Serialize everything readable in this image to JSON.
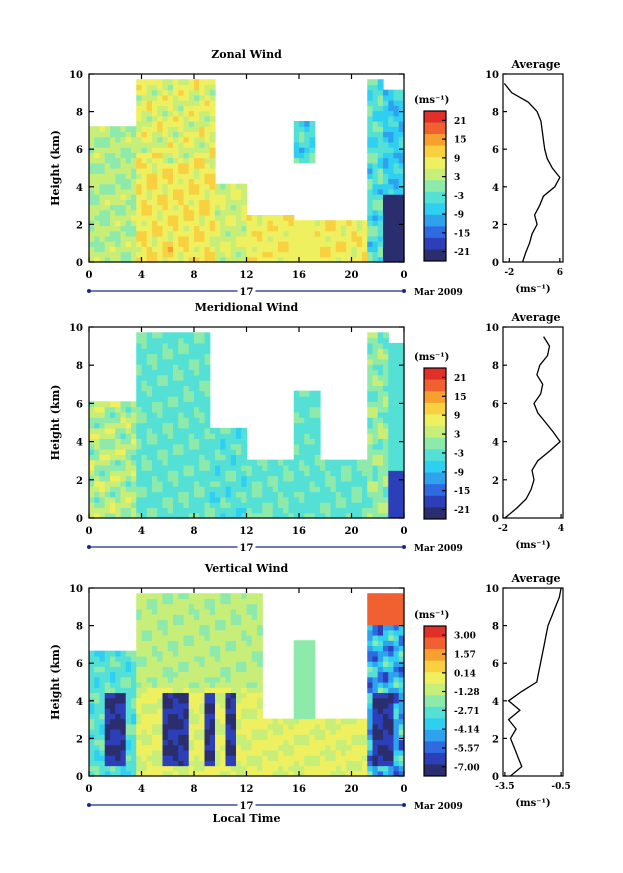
{
  "chart_data": [
    {
      "type": "heatmap",
      "title": "Zonal Wind",
      "ylabel": "Height (km)",
      "xlabel": "",
      "ylim": [
        0,
        10
      ],
      "xlim": [
        0,
        24
      ],
      "x_ticks": [
        "0",
        "4",
        "8",
        "12",
        "16",
        "20",
        "0"
      ],
      "y_ticks": [
        "0",
        "2",
        "4",
        "6",
        "8",
        "10"
      ],
      "day_label": "17",
      "date_label": "Mar 2009",
      "colorbar": {
        "unit": "(ms⁻¹)",
        "ticks": [
          "21",
          "15",
          "9",
          "3",
          "-3",
          "-9",
          "-15",
          "-21"
        ],
        "min": -24,
        "max": 24
      },
      "average": {
        "title": "Average",
        "xlabel": "(ms⁻¹)",
        "x_ticks": [
          "-2",
          "6"
        ],
        "xlim": [
          -3,
          6.5
        ],
        "height": [
          0,
          0.5,
          1,
          1.5,
          2,
          2.5,
          3,
          3.5,
          4,
          4.5,
          5,
          5.5,
          6,
          6.5,
          7,
          7.5,
          8,
          8.5,
          9,
          9.5
        ],
        "values": [
          0.1,
          0.6,
          1.2,
          1.6,
          2.4,
          2.0,
          2.8,
          3.4,
          5.2,
          6.0,
          4.8,
          4.0,
          3.6,
          3.4,
          3.2,
          3.0,
          2.4,
          1.0,
          -1.6,
          -2.8
        ]
      }
    },
    {
      "type": "heatmap",
      "title": "Meridional Wind",
      "ylabel": "Height (km)",
      "xlabel": "",
      "ylim": [
        0,
        10
      ],
      "xlim": [
        0,
        24
      ],
      "x_ticks": [
        "0",
        "4",
        "8",
        "12",
        "16",
        "20",
        "0"
      ],
      "y_ticks": [
        "0",
        "2",
        "4",
        "6",
        "8",
        "10"
      ],
      "day_label": "17",
      "date_label": "Mar 2009",
      "colorbar": {
        "unit": "(ms⁻¹)",
        "ticks": [
          "21",
          "15",
          "9",
          "3",
          "-3",
          "-9",
          "-15",
          "-21"
        ],
        "min": -24,
        "max": 24
      },
      "average": {
        "title": "Average",
        "xlabel": "(ms⁻¹)",
        "x_ticks": [
          "-2",
          "4"
        ],
        "xlim": [
          -2,
          4.2
        ],
        "height": [
          0,
          0.5,
          1,
          1.5,
          2,
          2.5,
          3,
          3.5,
          4,
          4.5,
          5,
          5.5,
          6,
          6.5,
          7,
          7.5,
          8,
          8.5,
          9,
          9.5
        ],
        "values": [
          -1.8,
          -0.6,
          0.4,
          0.9,
          1.2,
          1.0,
          1.6,
          2.8,
          3.9,
          3.2,
          2.4,
          1.6,
          1.2,
          1.9,
          2.1,
          1.5,
          1.8,
          2.6,
          2.8,
          2.2
        ]
      }
    },
    {
      "type": "heatmap",
      "title": "Vertical Wind",
      "ylabel": "Height (km)",
      "xlabel": "Local Time",
      "ylim": [
        0,
        10
      ],
      "xlim": [
        0,
        24
      ],
      "x_ticks": [
        "0",
        "4",
        "8",
        "12",
        "16",
        "20",
        "0"
      ],
      "y_ticks": [
        "0",
        "2",
        "4",
        "6",
        "8",
        "10"
      ],
      "day_label": "17",
      "date_label": "Mar 2009",
      "colorbar": {
        "unit": "(ms⁻¹)",
        "ticks": [
          "3.00",
          "1.57",
          "0.14",
          "-1.28",
          "-2.71",
          "-4.14",
          "-5.57",
          "-7.00"
        ],
        "min": -7.7,
        "max": 3.7
      },
      "average": {
        "title": "Average",
        "xlabel": "(ms⁻¹)",
        "x_ticks": [
          "-3.5",
          "-0.5"
        ],
        "xlim": [
          -3.6,
          -0.4
        ],
        "height": [
          0,
          0.5,
          1,
          1.5,
          2,
          2.5,
          3,
          3.5,
          4,
          4.5,
          5,
          5.5,
          6,
          6.5,
          7,
          7.5,
          8,
          8.5,
          9,
          9.5,
          10
        ],
        "values": [
          -3.2,
          -2.6,
          -2.8,
          -3.0,
          -3.2,
          -2.9,
          -3.3,
          -2.7,
          -3.3,
          -2.6,
          -1.8,
          -1.7,
          -1.6,
          -1.5,
          -1.4,
          -1.3,
          -1.2,
          -1.0,
          -0.8,
          -0.6,
          -0.5
        ]
      }
    }
  ]
}
